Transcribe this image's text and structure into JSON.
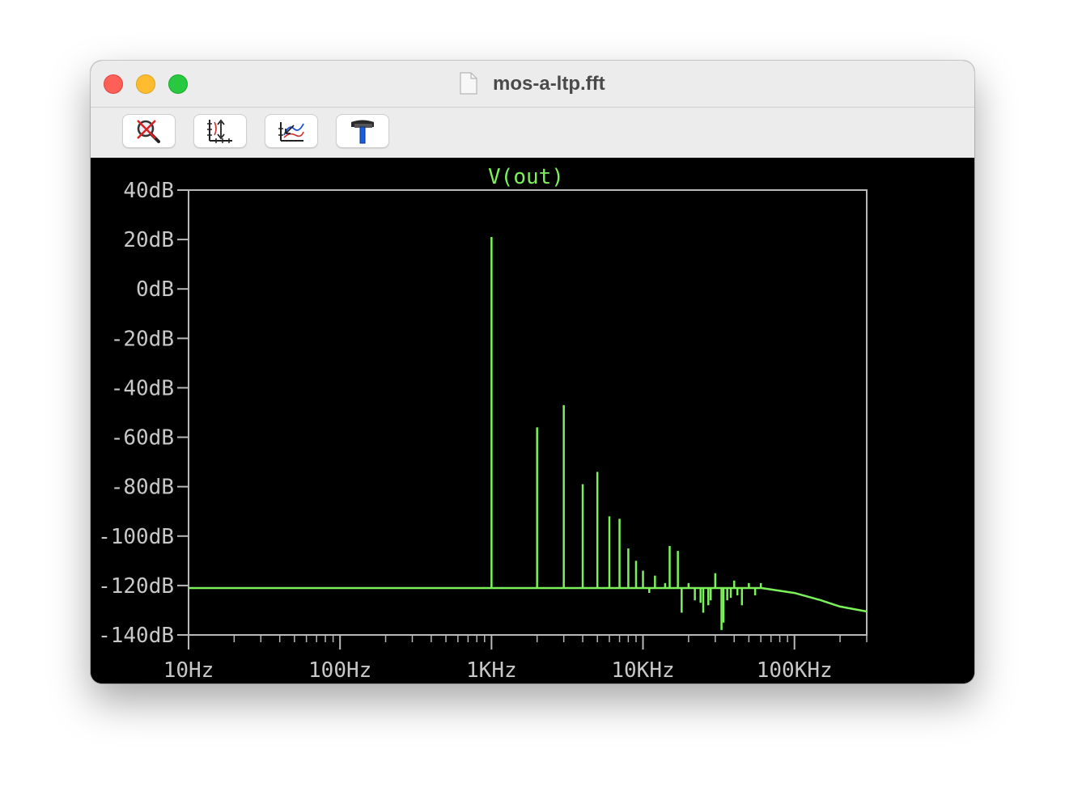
{
  "window": {
    "title": "mos-a-ltp.fft"
  },
  "toolbar": {
    "buttons": [
      {
        "name": "zoom-cancel-button",
        "icon": "zoom-cancel-icon"
      },
      {
        "name": "autorange-button",
        "icon": "autorange-icon"
      },
      {
        "name": "pick-traces-button",
        "icon": "pick-traces-icon"
      },
      {
        "name": "settings-button",
        "icon": "hammer-icon"
      }
    ]
  },
  "colors": {
    "trace": "#7cf25a",
    "axis": "#b8b8b8",
    "label": "#c8c8c8",
    "background": "#000000"
  },
  "chart_data": {
    "type": "line",
    "title": "V(out)",
    "xscale": "log",
    "xlim": [
      10,
      300000
    ],
    "ylim": [
      -140,
      40
    ],
    "yticks": [
      40,
      20,
      0,
      -20,
      -40,
      -60,
      -80,
      -100,
      -120,
      -140
    ],
    "ytick_labels": [
      "40dB",
      "20dB",
      "0dB",
      "-20dB",
      "-40dB",
      "-60dB",
      "-80dB",
      "-100dB",
      "-120dB",
      "-140dB"
    ],
    "xticks": [
      10,
      100,
      1000,
      10000,
      100000
    ],
    "xtick_labels": [
      "10Hz",
      "100Hz",
      "1KHz",
      "10KHz",
      "100KHz"
    ],
    "grid": false,
    "series": [
      {
        "name": "V(out)",
        "noise_floor_db": -121,
        "peaks": [
          {
            "f": 1000,
            "db": 21
          },
          {
            "f": 2000,
            "db": -56
          },
          {
            "f": 3000,
            "db": -47
          },
          {
            "f": 4000,
            "db": -79
          },
          {
            "f": 5000,
            "db": -74
          },
          {
            "f": 6000,
            "db": -92
          },
          {
            "f": 7000,
            "db": -93
          },
          {
            "f": 8000,
            "db": -105
          },
          {
            "f": 9000,
            "db": -110
          },
          {
            "f": 10000,
            "db": -114
          },
          {
            "f": 12000,
            "db": -116
          },
          {
            "f": 14000,
            "db": -119
          },
          {
            "f": 15000,
            "db": -104
          },
          {
            "f": 17000,
            "db": -106
          },
          {
            "f": 20000,
            "db": -119
          },
          {
            "f": 30000,
            "db": -115
          },
          {
            "f": 40000,
            "db": -118
          },
          {
            "f": 50000,
            "db": -119
          },
          {
            "f": 60000,
            "db": -119
          }
        ],
        "dips": [
          {
            "f": 11000,
            "db": -123
          },
          {
            "f": 18000,
            "db": -131
          },
          {
            "f": 22000,
            "db": -126
          },
          {
            "f": 24000,
            "db": -127
          },
          {
            "f": 25000,
            "db": -131
          },
          {
            "f": 27000,
            "db": -128
          },
          {
            "f": 28000,
            "db": -126
          },
          {
            "f": 33000,
            "db": -138
          },
          {
            "f": 34000,
            "db": -135
          },
          {
            "f": 36000,
            "db": -126
          },
          {
            "f": 38000,
            "db": -125
          },
          {
            "f": 42000,
            "db": -124
          },
          {
            "f": 45000,
            "db": -128
          },
          {
            "f": 55000,
            "db": -124
          }
        ],
        "tail": [
          {
            "f": 60000,
            "db": -121
          },
          {
            "f": 100000,
            "db": -123
          },
          {
            "f": 150000,
            "db": -126
          },
          {
            "f": 200000,
            "db": -128.5
          },
          {
            "f": 300000,
            "db": -130.5
          }
        ]
      }
    ]
  }
}
